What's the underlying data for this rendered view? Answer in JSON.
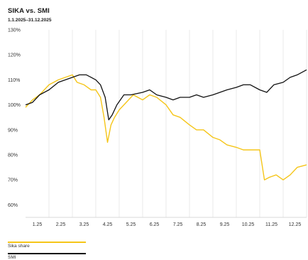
{
  "chart_data": {
    "type": "line",
    "title": "SIKA vs. SMI",
    "subtitle": "1.1.2025–31.12.2025",
    "x_ticks": [
      "1.25",
      "2.25",
      "3.25",
      "4.25",
      "5.25",
      "6.25",
      "7.25",
      "8.25",
      "9.25",
      "10.25",
      "11.25",
      "12.25"
    ],
    "y_ticks": [
      "130%",
      "120%",
      "110%",
      "100%",
      "90%",
      "80%",
      "70%",
      "60%"
    ],
    "ylim": [
      55,
      130
    ],
    "xlim": [
      0,
      12
    ],
    "grid": "vertical",
    "legend": "bottom-left",
    "series": [
      {
        "name": "Sika share",
        "color": "#f5c518",
        "x": [
          0,
          0.3,
          0.6,
          1,
          1.4,
          1.7,
          2,
          2.2,
          2.5,
          2.8,
          3,
          3.2,
          3.35,
          3.5,
          3.65,
          3.8,
          4,
          4.3,
          4.6,
          5,
          5.3,
          5.6,
          6,
          6.3,
          6.6,
          7,
          7.3,
          7.6,
          8,
          8.3,
          8.6,
          9,
          9.3,
          9.6,
          10,
          10.2,
          10.4,
          10.7,
          11,
          11.3,
          11.6,
          12
        ],
        "y": [
          99,
          102,
          104,
          108,
          110,
          111,
          112,
          109,
          108,
          106,
          106,
          103,
          95,
          85,
          92,
          95,
          98,
          101,
          104,
          102,
          104,
          103,
          100,
          96,
          95,
          92,
          90,
          90,
          87,
          86,
          84,
          83,
          82,
          82,
          82,
          70,
          71,
          72,
          70,
          72,
          75,
          76
        ]
      },
      {
        "name": "SMI",
        "color": "#111111",
        "x": [
          0,
          0.3,
          0.6,
          1,
          1.4,
          1.7,
          2,
          2.3,
          2.6,
          3,
          3.2,
          3.4,
          3.55,
          3.7,
          3.9,
          4.2,
          4.5,
          5,
          5.3,
          5.6,
          6,
          6.3,
          6.6,
          7,
          7.3,
          7.6,
          8,
          8.3,
          8.6,
          9,
          9.3,
          9.6,
          10,
          10.3,
          10.6,
          11,
          11.3,
          11.6,
          12
        ],
        "y": [
          100,
          101,
          104,
          106,
          109,
          110,
          111,
          112,
          112,
          110,
          108,
          103,
          94,
          96,
          100,
          104,
          104,
          105,
          106,
          104,
          103,
          102,
          103,
          103,
          104,
          103,
          104,
          105,
          106,
          107,
          108,
          108,
          106,
          105,
          108,
          109,
          111,
          112,
          114
        ]
      }
    ]
  },
  "legend": {
    "sika_label": "Sika share",
    "smi_label": "SMI"
  }
}
